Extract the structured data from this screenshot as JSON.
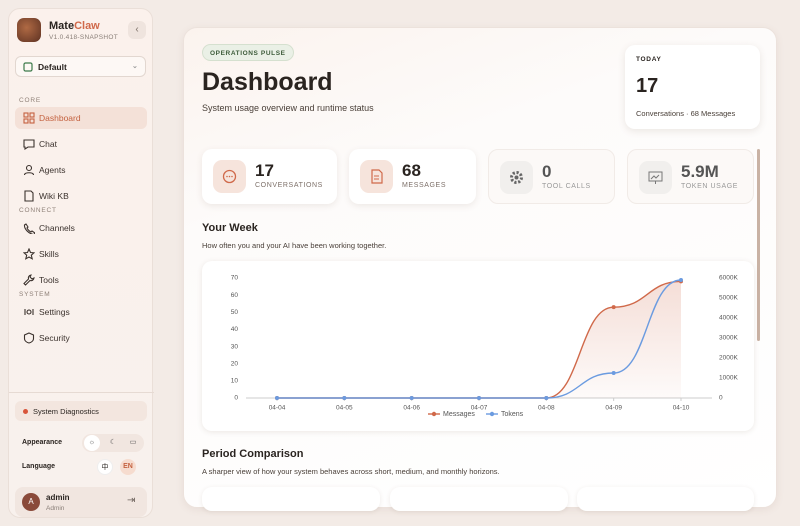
{
  "sidebar": {
    "brand": {
      "first": "Mate",
      "second": "Claw"
    },
    "version": "V1.0.418-SNAPSHOT",
    "workspace": "Default",
    "sections": [
      {
        "title": "CORE",
        "items": [
          "Dashboard",
          "Chat",
          "Agents",
          "Wiki KB"
        ]
      },
      {
        "title": "CONNECT",
        "items": [
          "Channels",
          "Skills",
          "Tools"
        ]
      },
      {
        "title": "SYSTEM",
        "items": [
          "Settings",
          "Security"
        ]
      }
    ],
    "diagnostics": "System Diagnostics",
    "appearance": "Appearance",
    "language": "Language",
    "languages": [
      "中",
      "EN"
    ],
    "user": {
      "initial": "A",
      "name": "admin",
      "role": "Admin"
    }
  },
  "header": {
    "badge": "OPERATIONS PULSE",
    "title": "Dashboard",
    "subtitle": "System usage overview and runtime status",
    "today": {
      "label": "TODAY",
      "value": 17,
      "detail": "Conversations · 68 Messages"
    }
  },
  "stats": [
    {
      "value": 17,
      "label": "CONVERSATIONS"
    },
    {
      "value": 68,
      "label": "MESSAGES"
    },
    {
      "value": 0,
      "label": "TOOL CALLS"
    },
    {
      "value": "5.9M",
      "label": "TOKEN USAGE"
    }
  ],
  "chart_data": {
    "type": "line",
    "title": "Your Week",
    "subtitle": "How often you and your AI have been working together.",
    "categories": [
      "04-04",
      "04-05",
      "04-06",
      "04-07",
      "04-08",
      "04-09",
      "04-10"
    ],
    "series": [
      {
        "name": "Messages",
        "color": "#d0694a",
        "values": [
          0,
          0,
          0,
          0,
          0,
          53,
          68
        ]
      },
      {
        "name": "Tokens",
        "color": "#6b9be0",
        "axis": "y2",
        "values": [
          0,
          0,
          0,
          0,
          0,
          1250,
          5900
        ]
      }
    ],
    "ylim": [
      0,
      70
    ],
    "yticks": [
      0,
      10,
      20,
      30,
      40,
      50,
      60,
      70
    ],
    "y2lim": [
      0,
      6000
    ],
    "y2ticks": [
      0,
      {
        "value": 1000,
        "label": "1000K"
      },
      {
        "value": 2000,
        "label": "2000K"
      },
      {
        "value": 3000,
        "label": "3000K"
      },
      {
        "value": 4000,
        "label": "4000K"
      },
      {
        "value": 5000,
        "label": "5000K"
      },
      {
        "value": 6000,
        "label": "6000K"
      }
    ],
    "grid": false,
    "legend": "bottom"
  },
  "comparison": {
    "title": "Period Comparison",
    "subtitle": "A sharper view of how your system behaves across short, medium, and monthly horizons."
  }
}
